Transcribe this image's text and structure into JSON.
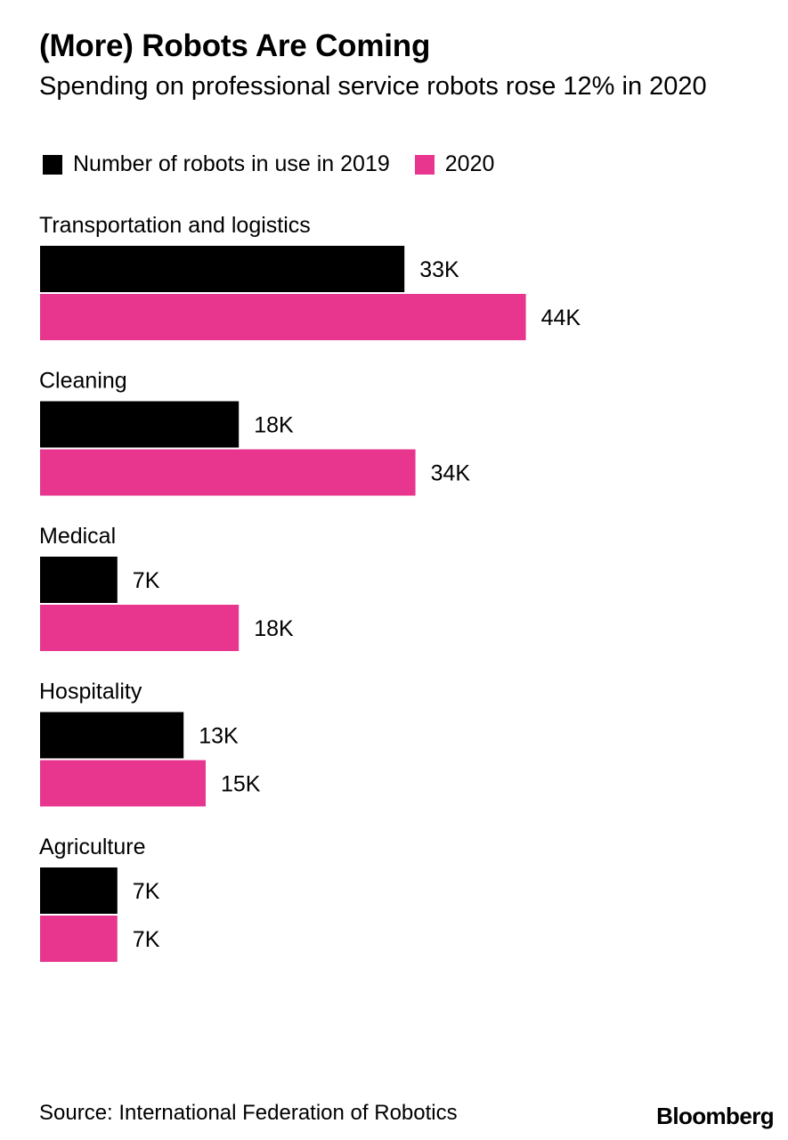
{
  "title": "(More) Robots Are Coming",
  "subtitle": "Spending on professional service robots rose 12% in 2020",
  "source": "Source: International Federation of Robotics",
  "logo": "Bloomberg",
  "colors": {
    "series_2019": "#000000",
    "series_2020": "#e8368f"
  },
  "chart_data": {
    "type": "bar",
    "orientation": "horizontal",
    "title": "(More) Robots Are Coming",
    "subtitle": "Spending on professional service robots rose 12% in 2020",
    "categories": [
      "Transportation and logistics",
      "Cleaning",
      "Medical",
      "Hospitality",
      "Agriculture"
    ],
    "series": [
      {
        "name": "Number of robots in use in 2019",
        "values": [
          33,
          18,
          7,
          13,
          7
        ],
        "labels": [
          "33K",
          "18K",
          "7K",
          "13K",
          "7K"
        ]
      },
      {
        "name": "2020",
        "values": [
          44,
          34,
          18,
          15,
          7
        ],
        "labels": [
          "44K",
          "34K",
          "18K",
          "15K",
          "7K"
        ]
      }
    ],
    "unit": "K",
    "xlim": [
      0,
      44
    ],
    "grid": false,
    "legend_position": "top-left"
  }
}
